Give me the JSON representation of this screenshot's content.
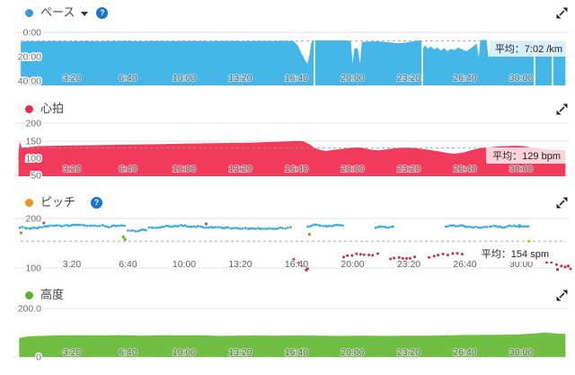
{
  "colors": {
    "pace_area": "#45b6e8",
    "pace_bullet": "#2e9fd8",
    "hr_area": "#f23a5c",
    "hr_bullet": "#ee2c50",
    "cadence_run": "#3aabdf",
    "cadence_walk": "#cc2d4e",
    "cadence_bullet": "#f0941d",
    "cadence_orange": "#f5a11d",
    "cadence_green": "#69b32a",
    "cadence_purple": "#a050a8",
    "elevation_area": "#70bf44",
    "elevation_bullet": "#5ab32e",
    "help_icon_bg": "#1874cd",
    "grid": "#e6e6e6",
    "avg_dash": "#999999"
  },
  "charts": [
    {
      "id": "pace",
      "title": "ペース",
      "avg_label": "平均：7:02 /km",
      "y_tick_labels": [
        "0:00",
        "20:00",
        "40:00"
      ]
    },
    {
      "id": "heart_rate",
      "title": "心拍",
      "avg_label": "平均：129 bpm",
      "y_tick_labels": [
        "200",
        "150",
        "100",
        "50"
      ]
    },
    {
      "id": "cadence",
      "title": "ピッチ",
      "avg_label": "平均：154 spm",
      "y_tick_labels": [
        "200",
        "100"
      ]
    },
    {
      "id": "elevation",
      "title": "高度",
      "avg_label": "",
      "y_tick_labels": [
        "200.0",
        "0"
      ]
    }
  ],
  "x_axis": {
    "tick_labels": [
      "3:20",
      "6:40",
      "10:00",
      "13:20",
      "16:40",
      "20:00",
      "23:20",
      "26:40",
      "30:00"
    ],
    "tick_seconds": [
      200,
      400,
      600,
      800,
      1000,
      1200,
      1400,
      1600,
      1800
    ]
  },
  "chart_data": [
    {
      "id": "pace",
      "type": "area",
      "name": "ペース",
      "unit": "min/km",
      "y_inverted": true,
      "ylim": [
        0,
        40
      ],
      "average_text": "7:02",
      "average_value": 7.03,
      "gap_seconds": [
        1064,
        1448,
        1848,
        1912
      ],
      "points": [
        [
          18,
          8.3
        ],
        [
          28,
          7.25
        ],
        [
          80,
          7.2
        ],
        [
          140,
          7.1
        ],
        [
          200,
          7.2
        ],
        [
          260,
          7.1
        ],
        [
          320,
          7.15
        ],
        [
          380,
          7.05
        ],
        [
          440,
          7.15
        ],
        [
          500,
          7.0
        ],
        [
          560,
          7.1
        ],
        [
          620,
          7.05
        ],
        [
          680,
          7.1
        ],
        [
          740,
          7.0
        ],
        [
          800,
          7.1
        ],
        [
          860,
          7.0
        ],
        [
          920,
          7.05
        ],
        [
          960,
          6.95
        ],
        [
          990,
          7.3
        ],
        [
          1005,
          11
        ],
        [
          1022,
          19
        ],
        [
          1038,
          26
        ],
        [
          1046,
          19
        ],
        [
          1052,
          9
        ],
        [
          1057,
          7.2
        ],
        [
          1068,
          6.6
        ],
        [
          1100,
          6.5
        ],
        [
          1135,
          6.6
        ],
        [
          1165,
          6.5
        ],
        [
          1186,
          6.9
        ],
        [
          1194,
          7.6
        ],
        [
          1200,
          26
        ],
        [
          1206,
          13.2
        ],
        [
          1212,
          13.0
        ],
        [
          1219,
          13.4
        ],
        [
          1226,
          26
        ],
        [
          1233,
          7.9
        ],
        [
          1255,
          7.5
        ],
        [
          1285,
          7.4
        ],
        [
          1310,
          7.8
        ],
        [
          1335,
          8.4
        ],
        [
          1360,
          8.9
        ],
        [
          1385,
          8.6
        ],
        [
          1410,
          7.6
        ],
        [
          1432,
          6.8
        ],
        [
          1446,
          6.7
        ],
        [
          1452,
          13
        ],
        [
          1458,
          10.5
        ],
        [
          1468,
          13.5
        ],
        [
          1478,
          11.5
        ],
        [
          1490,
          14
        ],
        [
          1502,
          12.5
        ],
        [
          1514,
          15
        ],
        [
          1526,
          13
        ],
        [
          1538,
          15.5
        ],
        [
          1550,
          13.5
        ],
        [
          1562,
          14.5
        ],
        [
          1576,
          12.5
        ],
        [
          1590,
          14
        ],
        [
          1604,
          15.5
        ],
        [
          1618,
          13.5
        ],
        [
          1630,
          11.5
        ],
        [
          1642,
          9
        ],
        [
          1649,
          21
        ],
        [
          1655,
          6.4
        ],
        [
          1665,
          6.3
        ],
        [
          1677,
          6.3
        ],
        [
          1684,
          22
        ],
        [
          1691,
          7.3
        ],
        [
          1712,
          7.1
        ],
        [
          1736,
          7.0
        ],
        [
          1762,
          6.9
        ],
        [
          1790,
          6.85
        ],
        [
          1818,
          6.9
        ],
        [
          1844,
          7.0
        ],
        [
          1872,
          7.1
        ],
        [
          1900,
          7.2
        ],
        [
          1926,
          7.3
        ],
        [
          1945,
          7.5
        ],
        [
          1958,
          7.9
        ]
      ]
    },
    {
      "id": "heart_rate",
      "type": "area",
      "name": "心拍",
      "unit": "bpm",
      "ylim": [
        50,
        200
      ],
      "average_value": 129,
      "points": [
        [
          10,
          112
        ],
        [
          14,
          147
        ],
        [
          22,
          130
        ],
        [
          40,
          131
        ],
        [
          80,
          134
        ],
        [
          140,
          135
        ],
        [
          200,
          136
        ],
        [
          280,
          137
        ],
        [
          360,
          138
        ],
        [
          440,
          139
        ],
        [
          520,
          140
        ],
        [
          600,
          141
        ],
        [
          680,
          142
        ],
        [
          760,
          143
        ],
        [
          840,
          144
        ],
        [
          900,
          146
        ],
        [
          950,
          147
        ],
        [
          1000,
          149
        ],
        [
          1025,
          148
        ],
        [
          1045,
          140
        ],
        [
          1065,
          129
        ],
        [
          1085,
          123
        ],
        [
          1105,
          120
        ],
        [
          1130,
          123
        ],
        [
          1160,
          126
        ],
        [
          1190,
          129
        ],
        [
          1215,
          131
        ],
        [
          1240,
          128
        ],
        [
          1265,
          124
        ],
        [
          1290,
          122
        ],
        [
          1315,
          124
        ],
        [
          1340,
          127
        ],
        [
          1365,
          129
        ],
        [
          1390,
          130
        ],
        [
          1415,
          129
        ],
        [
          1440,
          127
        ],
        [
          1465,
          124
        ],
        [
          1490,
          121
        ],
        [
          1515,
          118
        ],
        [
          1540,
          114
        ],
        [
          1560,
          112
        ],
        [
          1580,
          114
        ],
        [
          1600,
          117
        ],
        [
          1620,
          122
        ],
        [
          1645,
          127
        ],
        [
          1670,
          130
        ],
        [
          1695,
          131
        ],
        [
          1720,
          133
        ],
        [
          1750,
          134
        ],
        [
          1780,
          135
        ],
        [
          1805,
          134
        ],
        [
          1830,
          131
        ],
        [
          1855,
          128
        ],
        [
          1880,
          126
        ],
        [
          1905,
          124
        ],
        [
          1930,
          123
        ],
        [
          1958,
          122
        ]
      ]
    },
    {
      "id": "cadence",
      "type": "scatter",
      "name": "ピッチ",
      "unit": "spm",
      "ylim": [
        100,
        200
      ],
      "average_value": 154,
      "series": [
        {
          "name": "run",
          "color_key": "cadence_run",
          "step": 6,
          "radius": 1.35,
          "jitter": 4,
          "segments": [
            {
              "t0": 15,
              "t1": 395,
              "value": 183
            },
            {
              "t0": 400,
              "t1": 470,
              "value": 176
            },
            {
              "t0": 475,
              "t1": 985,
              "value": 183
            },
            {
              "t0": 1040,
              "t1": 1168,
              "value": 184
            },
            {
              "t0": 1282,
              "t1": 1350,
              "value": 183
            },
            {
              "t0": 1532,
              "t1": 1795,
              "value": 182
            },
            {
              "t0": 1795,
              "t1": 1830,
              "value": 188,
              "drift": -6
            }
          ]
        },
        {
          "name": "walk",
          "color_key": "cadence_walk",
          "step": 12,
          "radius": 1.5,
          "jitter": 7,
          "segments": [
            {
              "t0": 990,
              "t1": 1052,
              "value": 120,
              "drift": -18
            },
            {
              "t0": 1168,
              "t1": 1300,
              "value": 124,
              "drift": 7
            },
            {
              "t0": 1335,
              "t1": 1440,
              "value": 119,
              "drift": 2
            },
            {
              "t0": 1472,
              "t1": 1598,
              "value": 121,
              "drift": 2
            },
            {
              "t0": 1822,
              "t1": 1985,
              "value": 124,
              "drift": -26
            }
          ]
        }
      ],
      "outliers": [
        {
          "t": 100,
          "v": 191,
          "color_key": "cadence_purple"
        },
        {
          "t": 678,
          "v": 189,
          "color_key": "cadence_purple"
        },
        {
          "t": 19,
          "v": 171,
          "color_key": "cadence_green"
        },
        {
          "t": 383,
          "v": 163,
          "color_key": "cadence_green"
        },
        {
          "t": 389,
          "v": 158,
          "color_key": "cadence_green"
        },
        {
          "t": 1046,
          "v": 168,
          "color_key": "cadence_green"
        },
        {
          "t": 1828,
          "v": 154,
          "color_key": "cadence_orange"
        },
        {
          "t": 1035,
          "v": 96,
          "color_key": "cadence_walk"
        },
        {
          "t": 1930,
          "v": 97,
          "color_key": "cadence_walk"
        },
        {
          "t": 1968,
          "v": 104,
          "color_key": "cadence_walk"
        }
      ]
    },
    {
      "id": "elevation",
      "type": "area",
      "name": "高度",
      "unit": "m",
      "ylim": [
        0,
        200
      ],
      "points": [
        [
          12,
          78
        ],
        [
          40,
          84
        ],
        [
          80,
          87
        ],
        [
          150,
          89
        ],
        [
          220,
          90
        ],
        [
          300,
          89
        ],
        [
          380,
          90
        ],
        [
          450,
          88
        ],
        [
          520,
          90
        ],
        [
          600,
          89
        ],
        [
          660,
          90
        ],
        [
          720,
          87
        ],
        [
          780,
          88
        ],
        [
          850,
          89
        ],
        [
          920,
          88
        ],
        [
          1000,
          89
        ],
        [
          1080,
          88
        ],
        [
          1160,
          87
        ],
        [
          1240,
          88
        ],
        [
          1320,
          87
        ],
        [
          1400,
          88
        ],
        [
          1480,
          88
        ],
        [
          1560,
          90
        ],
        [
          1640,
          91
        ],
        [
          1720,
          92
        ],
        [
          1790,
          93
        ],
        [
          1850,
          97
        ],
        [
          1885,
          101
        ],
        [
          1915,
          98
        ],
        [
          1940,
          95
        ],
        [
          1958,
          96
        ]
      ]
    }
  ]
}
